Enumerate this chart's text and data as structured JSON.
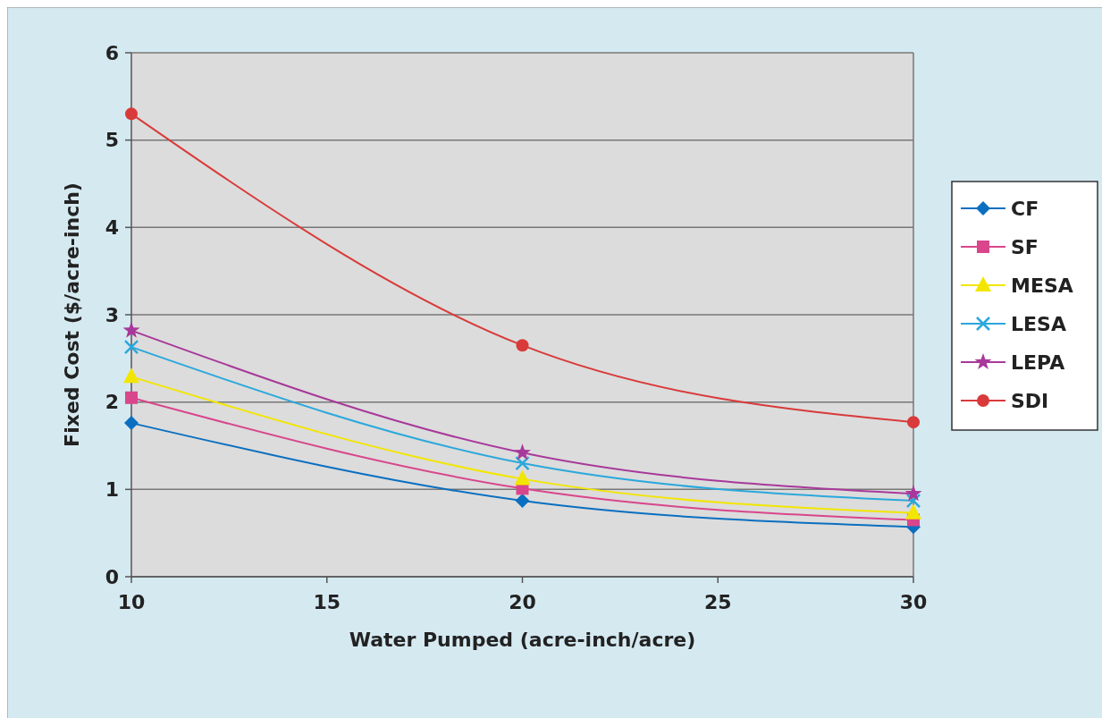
{
  "chart_data": {
    "type": "line",
    "xlabel": "Water Pumped (acre-inch/acre)",
    "ylabel": "Fixed Cost ($/acre-inch)",
    "x": [
      10,
      20,
      30
    ],
    "xlim": [
      10,
      30
    ],
    "xticks": [
      10,
      15,
      20,
      25,
      30
    ],
    "ylim": [
      0,
      6
    ],
    "yticks": [
      0,
      1,
      2,
      3,
      4,
      5,
      6
    ],
    "grid": "y",
    "legend": "right",
    "series": [
      {
        "name": "CF",
        "color": "#0a6fc0",
        "marker": "diamond",
        "values": [
          1.76,
          0.87,
          0.57
        ]
      },
      {
        "name": "SF",
        "color": "#d9468c",
        "marker": "square",
        "values": [
          2.05,
          1.01,
          0.65
        ]
      },
      {
        "name": "MESA",
        "color": "#f2e600",
        "marker": "triangle",
        "values": [
          2.29,
          1.12,
          0.73
        ]
      },
      {
        "name": "LESA",
        "color": "#2aa8dc",
        "marker": "cross",
        "values": [
          2.63,
          1.3,
          0.87
        ]
      },
      {
        "name": "LEPA",
        "color": "#a8399a",
        "marker": "star",
        "values": [
          2.82,
          1.42,
          0.95
        ]
      },
      {
        "name": "SDI",
        "color": "#d93a3a",
        "marker": "circle",
        "values": [
          5.3,
          2.65,
          1.77
        ]
      }
    ]
  }
}
